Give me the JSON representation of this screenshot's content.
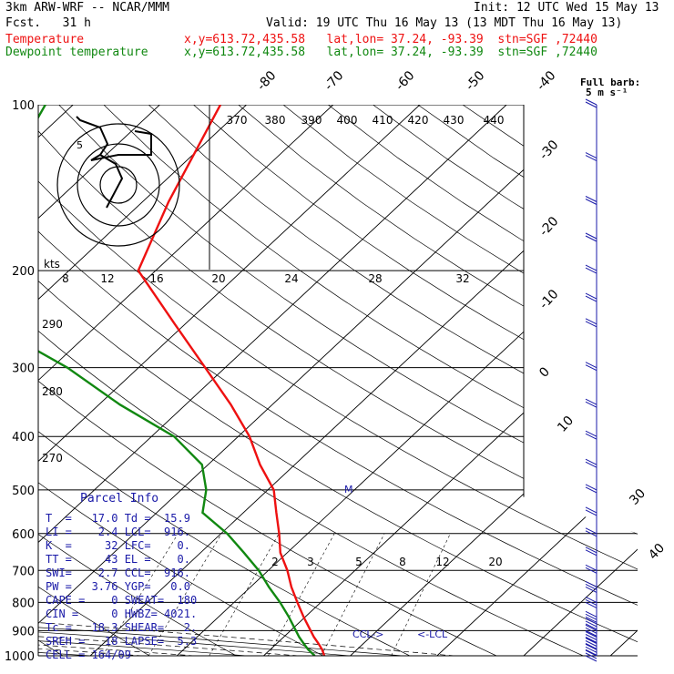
{
  "header": {
    "model": "3km ARW-WRF -- NCAR/MMM",
    "fcst": "Fcst.   31 h",
    "init": "Init: 12 UTC Wed 15 May 13",
    "valid": "Valid: 19 UTC Thu 16 May 13 (13 MDT Thu 16 May 13)",
    "temp_label": "Temperature",
    "temp_loc": "x,y=613.72,435.58   lat,lon= 37.24, -93.39  stn=SGF ,72440",
    "dew_label": "Dewpoint temperature",
    "dew_loc": "x,y=613.72,435.58   lat,lon= 37.24, -93.39  stn=SGF ,72440"
  },
  "barb_legend": [
    "Full barb:",
    "5 m s⁻¹"
  ],
  "colors": {
    "temperature": "#ee1111",
    "dewpoint": "#118811",
    "info": "#1a1aa8",
    "barbs": "#1a1aa8",
    "grid": "#000000"
  },
  "parcel_info": {
    "title": "Parcel Info",
    "rows": [
      "T  =   17.0 Td =  15.9",
      "LI =    2.4 LCL=  916.",
      "K  =     32 LFC=    0.",
      "TT =     43 EL =    0.",
      "SWI=    2.7 CCL=  916.",
      "PW =   3.76 YGP=   0.0",
      "CAPE =    0 SWEAT=  180",
      "CIN =     0 HWBZ= 4021.",
      "Tc =   18.3 SHEAR=   2.",
      "SREH =   18 LAPSE=  5.3",
      "CELL = 164/09"
    ]
  },
  "chart_data": {
    "type": "line",
    "title": "",
    "ylabel": "",
    "pressure_ticks": [
      100,
      200,
      300,
      400,
      500,
      600,
      700,
      800,
      900,
      1000
    ],
    "ylim": [
      1000,
      100
    ],
    "xlim_surface_temp_c": [
      -16,
      40
    ],
    "isotherm_labels": [
      -80,
      -70,
      -60,
      -50,
      -40,
      -30,
      -20,
      -10,
      0,
      10,
      30,
      40
    ],
    "theta_labels": [
      370,
      380,
      390,
      400,
      410,
      420,
      430,
      440
    ],
    "mixing_ratio_labels": [
      2,
      3,
      5,
      8,
      12,
      20
    ],
    "other_labels": [
      "290",
      "280",
      "270",
      "8",
      "12",
      "16",
      "20",
      "24",
      "28",
      "32",
      "kts",
      "5",
      "M",
      "CCL->",
      "<-LCL"
    ],
    "series": [
      {
        "name": "Temperature",
        "pressure": [
          1000,
          975,
          950,
          925,
          900,
          850,
          800,
          750,
          700,
          650,
          600,
          550,
          500,
          450,
          400,
          350,
          300,
          250,
          200,
          150,
          100
        ],
        "values": [
          17.0,
          16.0,
          14.8,
          13.5,
          12.3,
          9.8,
          7.3,
          4.7,
          2.2,
          -0.8,
          -3.3,
          -6.2,
          -9.3,
          -14.0,
          -18.7,
          -24.8,
          -32.3,
          -41.2,
          -52.0,
          -57.0,
          -63.0
        ]
      },
      {
        "name": "Dewpoint temperature",
        "pressure": [
          1000,
          975,
          950,
          925,
          900,
          850,
          800,
          750,
          700,
          650,
          600,
          550,
          500,
          450,
          400,
          350,
          300,
          250,
          200,
          150,
          100
        ],
        "values": [
          15.9,
          14.4,
          13.1,
          11.8,
          10.6,
          8.1,
          5.3,
          2.1,
          -1.1,
          -5.0,
          -9.3,
          -14.7,
          -17.1,
          -20.7,
          -27.4,
          -37.6,
          -48.2,
          -62.5,
          -73.5,
          -77.6,
          -83.2
        ]
      }
    ],
    "hodograph": {
      "ring_label": "5",
      "units": "kts"
    },
    "wind_levels": [
      1000,
      975,
      950,
      925,
      900,
      875,
      850,
      800,
      750,
      700,
      650,
      600,
      550,
      500,
      450,
      400,
      350,
      300,
      250,
      225,
      200,
      175,
      150,
      125,
      100
    ]
  }
}
